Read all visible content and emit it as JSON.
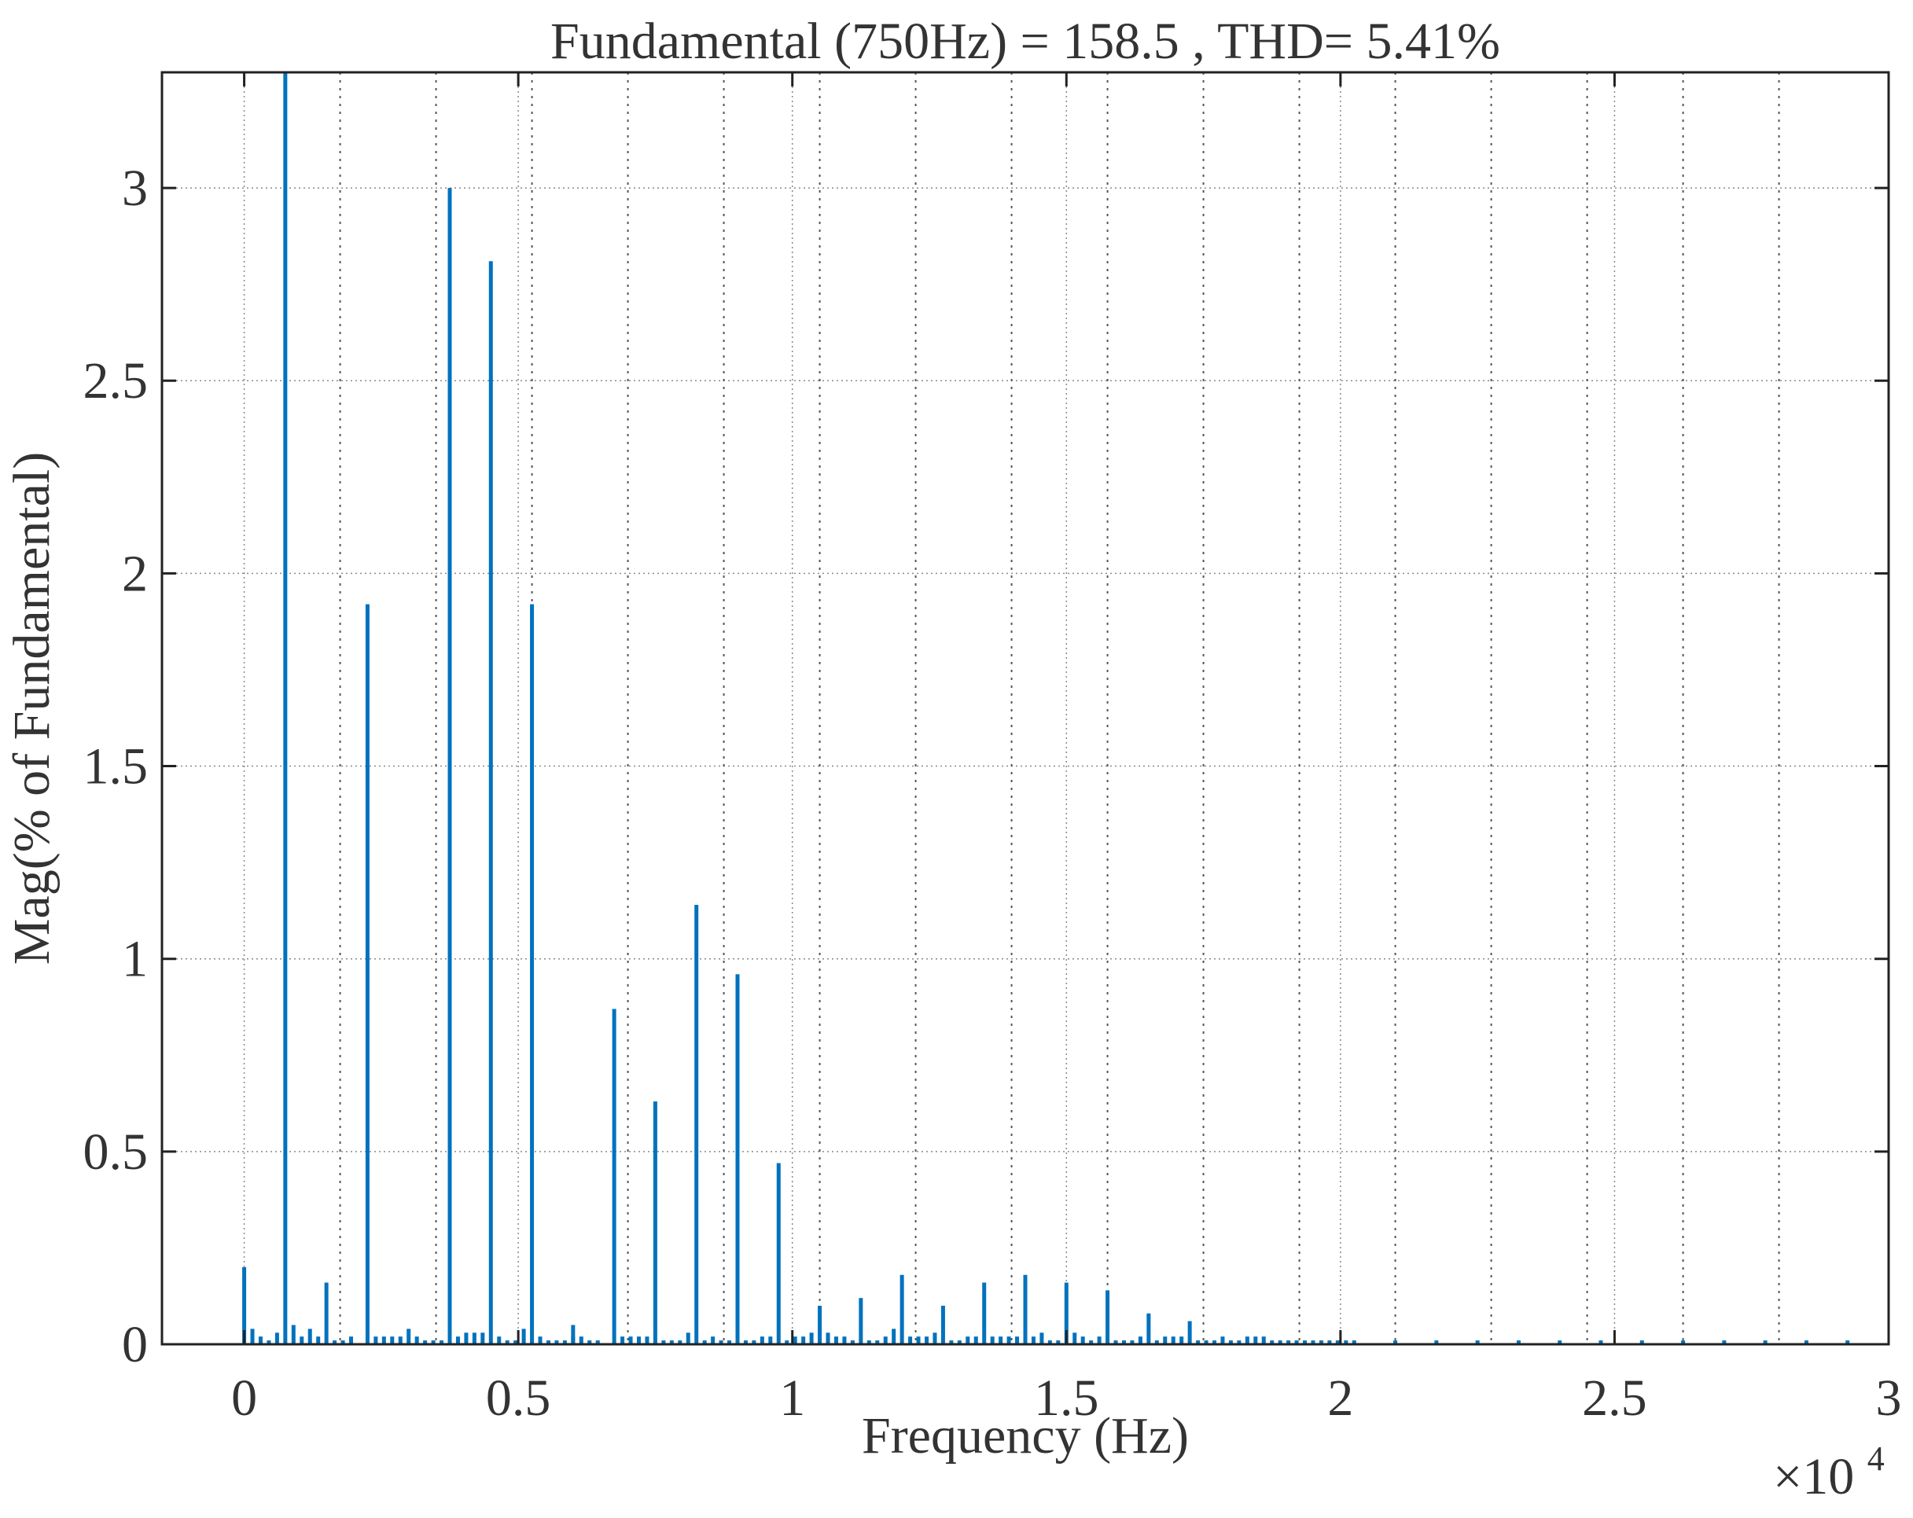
{
  "chart_data": {
    "type": "bar",
    "title": "Fundamental (750Hz) = 158.5 , THD= 5.41%",
    "xlabel": "Frequency (Hz)",
    "ylabel": "Mag(% of Fundamental)",
    "x_exponent_base": "×10",
    "x_exponent_power": "4",
    "xlim": [
      -0.15,
      3.0
    ],
    "ylim": [
      0,
      3.3
    ],
    "x_ticks": [
      0,
      0.5,
      1,
      1.5,
      2,
      2.5,
      3
    ],
    "x_tick_labels": [
      "0",
      "0.5",
      "1",
      "1.5",
      "2",
      "2.5",
      "3"
    ],
    "y_ticks": [
      0,
      0.5,
      1,
      1.5,
      2,
      2.5,
      3
    ],
    "y_tick_labels": [
      "0",
      "0.5",
      "1",
      "1.5",
      "2",
      "2.5",
      "3"
    ],
    "grid": true,
    "series_color": "#0072bd",
    "x": [
      0,
      0.075,
      0.225,
      0.15,
      0.21,
      0.375,
      0.45,
      0.525,
      0.6,
      0.675,
      0.75,
      0.825,
      0.9,
      0.975,
      1.05,
      1.125,
      1.2,
      1.275,
      1.35,
      1.425,
      1.5,
      1.575,
      1.65,
      1.725,
      1.8,
      1.875,
      1.95,
      2.025,
      2.1,
      2.175,
      2.25,
      2.325,
      2.4,
      2.475,
      2.55,
      2.625,
      2.7,
      2.775,
      2.85,
      2.925,
      0.015,
      0.03,
      0.045,
      0.06,
      0.09,
      0.105,
      0.12,
      0.135,
      0.165,
      0.18,
      0.195,
      0.24,
      0.255,
      0.27,
      0.285,
      0.3,
      0.315,
      0.33,
      0.345,
      0.36,
      0.39,
      0.405,
      0.42,
      0.435,
      0.465,
      0.48,
      0.495,
      0.51,
      0.54,
      0.555,
      0.57,
      0.585,
      0.6,
      0.615,
      0.63,
      0.645,
      0.69,
      0.705,
      0.72,
      0.735,
      0.765,
      0.78,
      0.795,
      0.81,
      0.84,
      0.855,
      0.87,
      0.885,
      0.915,
      0.93,
      0.945,
      0.96,
      0.99,
      1.005,
      1.02,
      1.035,
      1.065,
      1.08,
      1.095,
      1.11,
      1.14,
      1.155,
      1.17,
      1.185,
      1.215,
      1.23,
      1.245,
      1.26,
      1.29,
      1.305,
      1.32,
      1.335,
      1.365,
      1.38,
      1.395,
      1.41,
      1.44,
      1.455,
      1.47,
      1.485,
      1.515,
      1.53,
      1.545,
      1.56,
      1.59,
      1.605,
      1.62,
      1.635,
      1.665,
      1.68,
      1.695,
      1.71,
      1.74,
      1.755,
      1.77,
      1.785,
      1.815,
      1.83,
      1.845,
      1.86,
      1.89,
      1.905,
      1.92,
      1.935,
      1.965,
      1.98,
      1.995,
      2.01
    ],
    "values": [
      0.2,
      3.3,
      1.92,
      0.16,
      0.0,
      3.0,
      2.81,
      1.92,
      0.05,
      0.87,
      0.63,
      1.14,
      0.96,
      0.47,
      0.1,
      0.12,
      0.18,
      0.1,
      0.16,
      0.18,
      0.16,
      0.14,
      0.08,
      0.06,
      0.01,
      0.01,
      0.01,
      0.01,
      0.01,
      0.01,
      0.01,
      0.01,
      0.01,
      0.01,
      0.01,
      0.01,
      0.01,
      0.01,
      0.01,
      0.01,
      0.04,
      0.02,
      0.01,
      0.03,
      0.05,
      0.02,
      0.04,
      0.02,
      0.01,
      0.01,
      0.02,
      0.02,
      0.02,
      0.02,
      0.02,
      0.04,
      0.02,
      0.01,
      0.01,
      0.01,
      0.02,
      0.03,
      0.03,
      0.03,
      0.02,
      0.01,
      0.01,
      0.04,
      0.02,
      0.01,
      0.01,
      0.01,
      0.02,
      0.02,
      0.01,
      0.01,
      0.02,
      0.02,
      0.02,
      0.02,
      0.01,
      0.01,
      0.01,
      0.03,
      0.01,
      0.02,
      0.01,
      0.01,
      0.01,
      0.01,
      0.02,
      0.02,
      0.01,
      0.02,
      0.02,
      0.03,
      0.03,
      0.02,
      0.02,
      0.01,
      0.01,
      0.01,
      0.02,
      0.04,
      0.02,
      0.02,
      0.02,
      0.03,
      0.01,
      0.01,
      0.02,
      0.02,
      0.02,
      0.02,
      0.02,
      0.02,
      0.02,
      0.03,
      0.01,
      0.01,
      0.03,
      0.02,
      0.01,
      0.02,
      0.01,
      0.01,
      0.01,
      0.02,
      0.01,
      0.02,
      0.02,
      0.02,
      0.01,
      0.01,
      0.01,
      0.02,
      0.01,
      0.02,
      0.02,
      0.02,
      0.01,
      0.01,
      0.01,
      0.01,
      0.01,
      0.01,
      0.01,
      0.01
    ],
    "dense_grid_x": [
      0.175,
      0.35,
      0.525,
      0.7,
      0.875,
      1.05,
      1.225,
      1.4,
      1.575,
      1.75,
      1.925,
      2.1,
      2.275,
      2.45,
      2.625,
      2.8
    ]
  }
}
